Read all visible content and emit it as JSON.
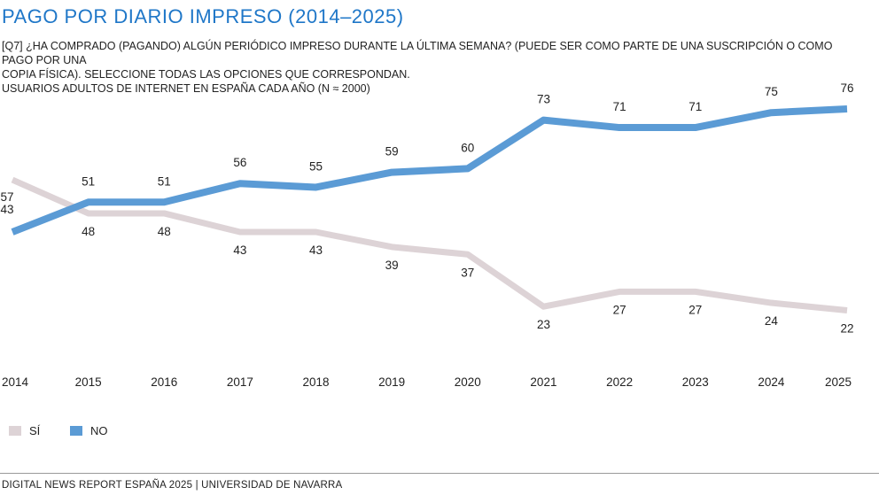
{
  "title": "PAGO POR DIARIO IMPRESO (2014–2025)",
  "subtitle_lines": [
    "[Q7] ¿HA COMPRADO (PAGANDO) ALGÚN PERIÓDICO IMPRESO DURANTE LA ÚLTIMA SEMANA? (PUEDE SER COMO PARTE DE UNA SUSCRIPCIÓN O COMO PAGO POR UNA",
    "COPIA FÍSICA). SELECCIONE TODAS LAS OPCIONES QUE CORRESPONDAN.",
    "USUARIOS ADULTOS DE INTERNET EN ESPAÑA CADA AÑO (N ≈ 2000)"
  ],
  "footer": "DIGITAL NEWS REPORT ESPAÑA 2025 | UNIVERSIDAD DE NAVARRA",
  "chart_data": {
    "type": "line",
    "categories": [
      "2014",
      "2015",
      "2016",
      "2017",
      "2018",
      "2019",
      "2020",
      "2021",
      "2022",
      "2023",
      "2024",
      "2025"
    ],
    "series": [
      {
        "name": "SÍ",
        "color": "#ddd3d6",
        "values": [
          57,
          48,
          48,
          43,
          43,
          39,
          37,
          23,
          27,
          27,
          24,
          22
        ]
      },
      {
        "name": "NO",
        "color": "#5b9bd5",
        "values": [
          43,
          51,
          51,
          56,
          55,
          59,
          60,
          73,
          71,
          71,
          75,
          76
        ]
      }
    ],
    "grid": false,
    "legend_position": "bottom-left"
  }
}
